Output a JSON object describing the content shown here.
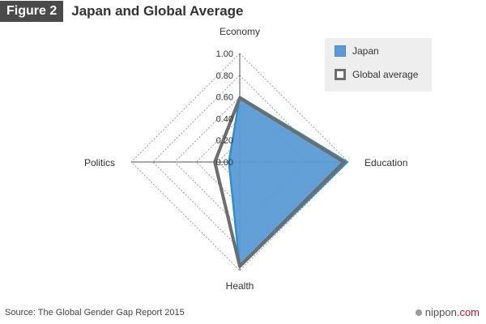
{
  "header": {
    "figure_label": "Figure 2",
    "title": "Japan and Global Average"
  },
  "chart_data": {
    "type": "radar",
    "title": "Japan and Global Average",
    "axes": [
      "Economy",
      "Education",
      "Health",
      "Politics"
    ],
    "scale": {
      "min": 0,
      "max": 1,
      "ticks": [
        "1.00",
        "0.80",
        "0.60",
        "0.40",
        "0.20",
        "0.00"
      ]
    },
    "series": [
      {
        "name": "Japan",
        "values": [
          0.6,
          0.99,
          0.97,
          0.1
        ],
        "color": "#5b9bd5",
        "style": "filled"
      },
      {
        "name": "Global average",
        "values": [
          0.59,
          0.96,
          0.96,
          0.23
        ],
        "color": "#6d6d6d",
        "style": "outline"
      }
    ],
    "grid": "dotted",
    "legend_position": "top-right"
  },
  "footer": {
    "source": "Source: The Global Gender Gap Report 2015",
    "brand_name": "nippon",
    "brand_suffix": ".com"
  },
  "colors": {
    "japan": "#5b9bd5",
    "global": "#6d6d6d",
    "brand_accent": "#c8102e"
  },
  "icons": {
    "brand": "nippon-logo-dot-icon"
  }
}
